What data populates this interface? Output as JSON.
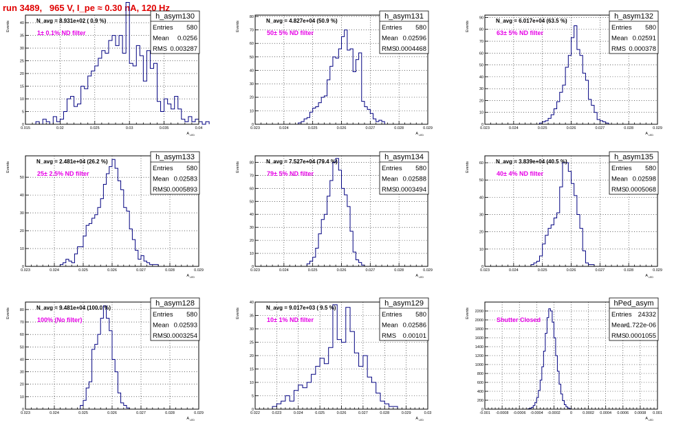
{
  "run_title": "run 3489,   965 V, I_pe ≈ 0.30 nA, 120 Hz",
  "stats_labels": {
    "entries": "Entries",
    "mean": "Mean",
    "rms": "RMS"
  },
  "colors": {
    "histogram": "#000080",
    "annotation": "#e600e6",
    "title": "#e00000",
    "frame": "#000000",
    "grid": "#000000"
  },
  "chart_data": [
    {
      "type": "histogram",
      "name": "h_asym130",
      "nlabel": "N_avg = 8.931e+02 ( 0.9 %)",
      "filter": "1± 0.1% ND filter",
      "entries": "580",
      "mean": "0.0256",
      "rms": "0.003287",
      "ylabel": "Events",
      "xlabel": "A",
      "xlabel_sub": "LED",
      "xlim": [
        0.015,
        0.04
      ],
      "ylim": [
        0,
        43
      ],
      "xticks": [
        0.015,
        0.02,
        0.025,
        0.03,
        0.035,
        0.04
      ],
      "xtick_labels": [
        "0.015",
        "0.02",
        "0.025",
        "0.03",
        "0.035",
        "0.04"
      ],
      "yticks": [
        0,
        5,
        10,
        15,
        20,
        25,
        30,
        35,
        40
      ],
      "ytick_labels": [
        "0",
        "5",
        "10",
        "15",
        "20",
        "25",
        "30",
        "35",
        "40"
      ],
      "bins": {
        "start": 0.0165,
        "width": 0.0005,
        "values": [
          1,
          0,
          2,
          1,
          0,
          3,
          1,
          2,
          5,
          10,
          11,
          7,
          8,
          15,
          14,
          19,
          21,
          23,
          26,
          29,
          28,
          33,
          35,
          31,
          35,
          28,
          48,
          24,
          23,
          31,
          27,
          17,
          29,
          22,
          24,
          9,
          5,
          10,
          8,
          6,
          11,
          6,
          2,
          1,
          3,
          1,
          2,
          1,
          0,
          1
        ]
      }
    },
    {
      "type": "histogram",
      "name": "h_asym131",
      "nlabel": "N_avg = 4.827e+04 (50.9 %)",
      "filter": "50± 5% ND filter",
      "entries": "580",
      "mean": "0.02596",
      "rms": "0.0004468",
      "ylabel": "Events",
      "xlabel": "A",
      "xlabel_sub": "LED",
      "xlim": [
        0.023,
        0.029
      ],
      "ylim": [
        0,
        81
      ],
      "xticks": [
        0.023,
        0.024,
        0.025,
        0.026,
        0.027,
        0.028,
        0.029
      ],
      "xtick_labels": [
        "0.023",
        "0.024",
        "0.025",
        "0.026",
        "0.027",
        "0.028",
        "0.029"
      ],
      "yticks": [
        0,
        10,
        20,
        30,
        40,
        50,
        60,
        70,
        80
      ],
      "ytick_labels": [
        "0",
        "10",
        "20",
        "30",
        "40",
        "50",
        "60",
        "70",
        "80"
      ],
      "bins": {
        "start": 0.0245,
        "width": 0.0001,
        "values": [
          1,
          2,
          4,
          5,
          9,
          12,
          13,
          16,
          20,
          21,
          33,
          43,
          50,
          49,
          56,
          65,
          70,
          55,
          56,
          39,
          48,
          53,
          17,
          13,
          11,
          8,
          4,
          2,
          3,
          2
        ]
      }
    },
    {
      "type": "histogram",
      "name": "h_asym132",
      "nlabel": "N_avg = 6.017e+04 (63.5 %)",
      "filter": "63± 5% ND filter",
      "entries": "580",
      "mean": "0.02591",
      "rms": "0.000378",
      "ylabel": "Events",
      "xlabel": "A",
      "xlabel_sub": "LED",
      "xlim": [
        0.023,
        0.029
      ],
      "ylim": [
        0,
        92
      ],
      "xticks": [
        0.023,
        0.024,
        0.025,
        0.026,
        0.027,
        0.028,
        0.029
      ],
      "xtick_labels": [
        "0.023",
        "0.024",
        "0.025",
        "0.026",
        "0.027",
        "0.028",
        "0.029"
      ],
      "yticks": [
        0,
        10,
        20,
        30,
        40,
        50,
        60,
        70,
        80,
        90
      ],
      "ytick_labels": [
        "0",
        "10",
        "20",
        "30",
        "40",
        "50",
        "60",
        "70",
        "80",
        "90"
      ],
      "bins": {
        "start": 0.0249,
        "width": 0.0001,
        "values": [
          1,
          2,
          3,
          5,
          8,
          13,
          19,
          27,
          33,
          48,
          58,
          73,
          83,
          63,
          58,
          43,
          37,
          21,
          16,
          10,
          4,
          3,
          2,
          1
        ]
      }
    },
    {
      "type": "histogram",
      "name": "h_asym133",
      "nlabel": "N_avg = 2.481e+04 (26.2 %)",
      "filter": "25± 2.5% ND filter",
      "entries": "580",
      "mean": "0.02583",
      "rms": "0.0005893",
      "ylabel": "Events",
      "xlabel": "A",
      "xlabel_sub": "LED",
      "xlim": [
        0.023,
        0.029
      ],
      "ylim": [
        0,
        62
      ],
      "xticks": [
        0.023,
        0.024,
        0.025,
        0.026,
        0.027,
        0.028,
        0.029
      ],
      "xtick_labels": [
        "0.023",
        "0.024",
        "0.025",
        "0.026",
        "0.027",
        "0.028",
        "0.029"
      ],
      "yticks": [
        0,
        10,
        20,
        30,
        40,
        50
      ],
      "ytick_labels": [
        "0",
        "10",
        "20",
        "30",
        "40",
        "50"
      ],
      "bins": {
        "start": 0.0242,
        "width": 0.0001,
        "values": [
          1,
          2,
          4,
          3,
          2,
          7,
          11,
          11,
          17,
          23,
          24,
          27,
          29,
          33,
          38,
          46,
          52,
          56,
          60,
          55,
          48,
          43,
          33,
          31,
          21,
          15,
          9,
          4,
          6,
          3,
          2,
          1,
          1,
          1
        ]
      }
    },
    {
      "type": "histogram",
      "name": "h_asym134",
      "nlabel": "N_avg = 7.527e+04 (79.4 %)",
      "filter": "79± 5% ND filter",
      "entries": "580",
      "mean": "0.02588",
      "rms": "0.0003494",
      "ylabel": "Events",
      "xlabel": "A",
      "xlabel_sub": "LED",
      "xlim": [
        0.023,
        0.029
      ],
      "ylim": [
        0,
        85
      ],
      "xticks": [
        0.023,
        0.024,
        0.025,
        0.026,
        0.027,
        0.028,
        0.029
      ],
      "xtick_labels": [
        "0.023",
        "0.024",
        "0.025",
        "0.026",
        "0.027",
        "0.028",
        "0.029"
      ],
      "yticks": [
        0,
        10,
        20,
        30,
        40,
        50,
        60,
        70,
        80
      ],
      "ytick_labels": [
        "0",
        "10",
        "20",
        "30",
        "40",
        "50",
        "60",
        "70",
        "80"
      ],
      "bins": {
        "start": 0.0248,
        "width": 0.0001,
        "values": [
          2,
          4,
          7,
          14,
          25,
          36,
          40,
          54,
          66,
          80,
          83,
          74,
          60,
          55,
          46,
          27,
          11,
          5,
          3,
          1
        ]
      }
    },
    {
      "type": "histogram",
      "name": "h_asym135",
      "nlabel": "N_avg = 3.839e+04 (40.5 %)",
      "filter": "40± 4% ND filter",
      "entries": "580",
      "mean": "0.02598",
      "rms": "0.0005068",
      "ylabel": "Events",
      "xlabel": "A",
      "xlabel_sub": "LED",
      "xlim": [
        0.023,
        0.029
      ],
      "ylim": [
        0,
        64
      ],
      "xticks": [
        0.023,
        0.024,
        0.025,
        0.026,
        0.027,
        0.028,
        0.029
      ],
      "xtick_labels": [
        "0.023",
        "0.024",
        "0.025",
        "0.026",
        "0.027",
        "0.028",
        "0.029"
      ],
      "yticks": [
        0,
        10,
        20,
        30,
        40,
        50,
        60
      ],
      "ytick_labels": [
        "0",
        "10",
        "20",
        "30",
        "40",
        "50",
        "60"
      ],
      "bins": {
        "start": 0.0246,
        "width": 0.0001,
        "values": [
          1,
          2,
          3,
          6,
          13,
          18,
          22,
          24,
          28,
          31,
          46,
          60,
          60,
          55,
          48,
          41,
          30,
          22,
          9,
          2,
          1,
          1
        ]
      }
    },
    {
      "type": "histogram",
      "name": "h_asym128",
      "nlabel": "N_avg = 9.481e+04 (100.0 %)",
      "filter": "100% (No filter)",
      "entries": "580",
      "mean": "0.02593",
      "rms": "0.0003254",
      "ylabel": "Events",
      "xlabel": "A",
      "xlabel_sub": "LED",
      "xlim": [
        0.023,
        0.029
      ],
      "ylim": [
        0,
        86
      ],
      "xticks": [
        0.023,
        0.024,
        0.025,
        0.026,
        0.027,
        0.028,
        0.029
      ],
      "xtick_labels": [
        "0.023",
        "0.024",
        "0.025",
        "0.026",
        "0.027",
        "0.028",
        "0.029"
      ],
      "yticks": [
        0,
        10,
        20,
        30,
        40,
        50,
        60,
        70,
        80
      ],
      "ytick_labels": [
        "0",
        "10",
        "20",
        "30",
        "40",
        "50",
        "60",
        "70",
        "80"
      ],
      "bins": {
        "start": 0.0249,
        "width": 0.0001,
        "values": [
          3,
          7,
          17,
          22,
          48,
          52,
          60,
          73,
          83,
          73,
          63,
          40,
          30,
          13,
          5,
          3,
          1
        ]
      }
    },
    {
      "type": "histogram",
      "name": "h_asym129",
      "nlabel": "N_avg = 9.017e+03 ( 9.5 %)",
      "filter": "10± 1% ND filter",
      "entries": "580",
      "mean": "0.02586",
      "rms": "0.00101",
      "ylabel": "Events",
      "xlabel": "A",
      "xlabel_sub": "LED",
      "xlim": [
        0.022,
        0.03
      ],
      "ylim": [
        0,
        40
      ],
      "xticks": [
        0.022,
        0.023,
        0.024,
        0.025,
        0.026,
        0.027,
        0.028,
        0.029,
        0.03
      ],
      "xtick_labels": [
        "0.022",
        "0.023",
        "0.024",
        "0.025",
        "0.026",
        "0.027",
        "0.028",
        "0.029",
        "0.03"
      ],
      "yticks": [
        0,
        5,
        10,
        15,
        20,
        25,
        30,
        35,
        40
      ],
      "ytick_labels": [
        "0",
        "5",
        "10",
        "15",
        "20",
        "25",
        "30",
        "35",
        "40"
      ],
      "bins": {
        "start": 0.0228,
        "width": 0.0002,
        "values": [
          1,
          2,
          3,
          5,
          3,
          7,
          9,
          8,
          10,
          13,
          16,
          19,
          17,
          23,
          39,
          26,
          25,
          38,
          29,
          21,
          16,
          20,
          12,
          10,
          6,
          3,
          2,
          1,
          1
        ]
      }
    },
    {
      "type": "histogram",
      "name": "hPed_asym",
      "nlabel": "",
      "filter": "Shutter Closed",
      "entries": "24332",
      "mean": "-1.722e-06",
      "rms": "0.0001055",
      "ylabel": "Events",
      "xlabel": "A",
      "xlabel_sub": "LED",
      "xlim": [
        -0.001,
        0.001
      ],
      "ylim": [
        0,
        2400
      ],
      "xticks": [
        -0.001,
        -0.0008,
        -0.0006,
        -0.0004,
        -0.0002,
        0,
        0.0002,
        0.0004,
        0.0006,
        0.0008,
        0.001
      ],
      "xtick_labels": [
        "-0.001",
        "-0.0008",
        "-0.0006",
        "-0.0004",
        "-0.0002",
        "0",
        "0.0002",
        "0.0004",
        "0.0006",
        "0.0008",
        "0.001"
      ],
      "yticks": [
        0,
        200,
        400,
        600,
        800,
        1000,
        1200,
        1400,
        1600,
        1800,
        2000,
        2200
      ],
      "ytick_labels": [
        "0",
        "200",
        "400",
        "600",
        "800",
        "1000",
        "1200",
        "1400",
        "1600",
        "1800",
        "2000",
        "2200"
      ],
      "bins": {
        "start": -0.0005,
        "width": 2e-05,
        "values": [
          10,
          20,
          40,
          80,
          150,
          260,
          420,
          650,
          950,
          1300,
          1700,
          2050,
          2250,
          2200,
          1950,
          1600,
          1200,
          850,
          560,
          340,
          190,
          100,
          50,
          25,
          10
        ]
      }
    }
  ]
}
